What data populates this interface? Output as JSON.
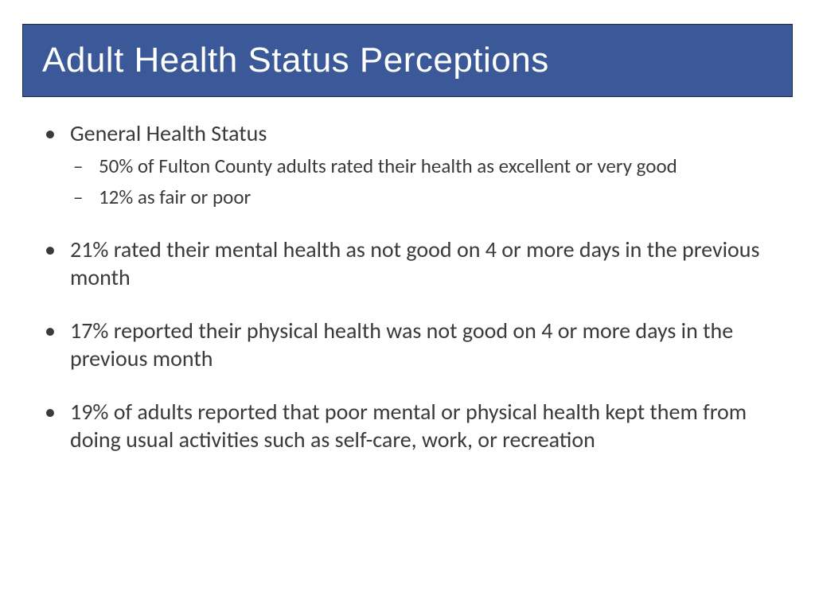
{
  "slide": {
    "title": "Adult Health Status Perceptions",
    "title_bar": {
      "background_color": "#3b5998",
      "border_color": "#1a2a4a",
      "text_color": "#ffffff",
      "font_family": "Century Gothic",
      "font_size": 44
    },
    "bullets": [
      {
        "text": "General Health Status",
        "sub_bullets": [
          "50% of Fulton County adults rated their health as excellent or very good",
          "12% as fair or poor"
        ]
      },
      {
        "text": "21% rated their mental health as not good on 4 or more days in the previous month",
        "sub_bullets": []
      },
      {
        "text": "17% reported their physical health was not good on 4 or more days in the previous month",
        "sub_bullets": []
      },
      {
        "text": "19% of adults reported that poor mental or physical health kept them from doing usual activities such as self-care, work, or recreation",
        "sub_bullets": []
      }
    ],
    "body_style": {
      "text_color": "#3a3a3a",
      "main_font_size": 28,
      "sub_font_size": 25,
      "background_color": "#ffffff"
    }
  }
}
